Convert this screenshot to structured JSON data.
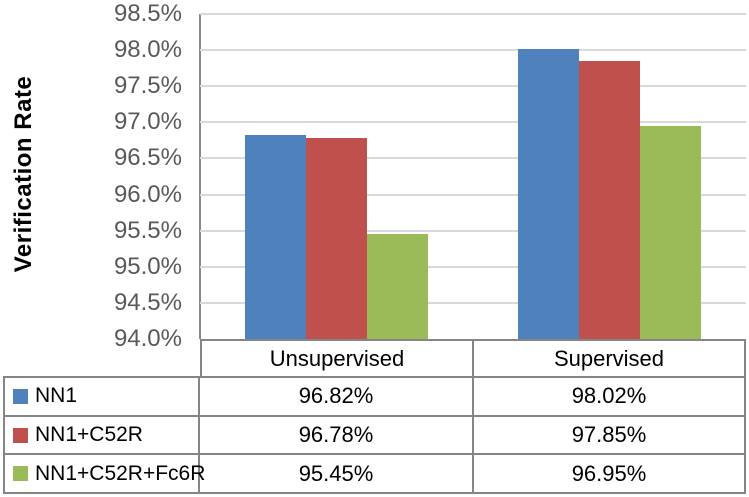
{
  "chart_data": {
    "type": "bar",
    "title": "",
    "ylabel": "Verification Rate",
    "xlabel": "",
    "categories": [
      "Unsupervised",
      "Supervised"
    ],
    "series": [
      {
        "name": "NN1",
        "color": "#4F81BD",
        "values": [
          96.82,
          98.02
        ]
      },
      {
        "name": "NN1+C52R",
        "color": "#C0504D",
        "values": [
          96.78,
          97.85
        ]
      },
      {
        "name": "NN1+C52R+Fc6R",
        "color": "#9BBB59",
        "values": [
          95.45,
          96.95
        ]
      }
    ],
    "value_labels": [
      [
        "96.82%",
        "98.02%"
      ],
      [
        "96.78%",
        "97.85%"
      ],
      [
        "95.45%",
        "96.95%"
      ]
    ],
    "ylim": [
      94.0,
      98.5
    ],
    "ytick_step": 0.5,
    "ytick_labels": [
      "94.0%",
      "94.5%",
      "95.0%",
      "95.5%",
      "96.0%",
      "96.5%",
      "97.0%",
      "97.5%",
      "98.0%",
      "98.5%"
    ],
    "grid": true,
    "legend_position": "table-left-column"
  },
  "colors": {
    "gridline": "#d9d9d9",
    "axis_line": "#898989",
    "tick_text": "#595959",
    "table_border": "#858585"
  }
}
